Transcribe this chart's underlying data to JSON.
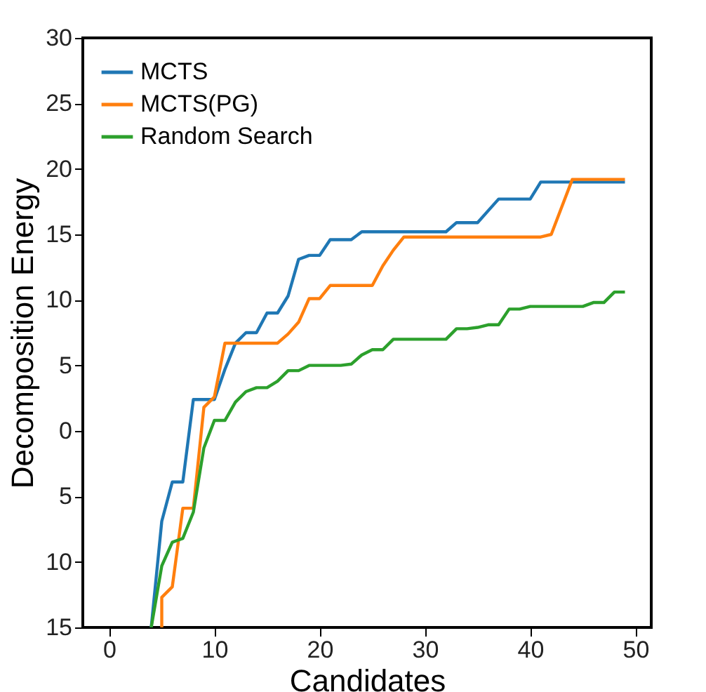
{
  "chart_data": {
    "type": "line",
    "xlabel": "Candidates",
    "ylabel": "Decomposition Energy",
    "xlim": [
      -2.5,
      51.5
    ],
    "ylim": [
      -15,
      30
    ],
    "xticks": [
      0,
      10,
      20,
      30,
      40,
      50
    ],
    "yticks": [
      {
        "value": -15,
        "label": "15"
      },
      {
        "value": -10,
        "label": "10"
      },
      {
        "value": -5,
        "label": "5"
      },
      0,
      5,
      10,
      15,
      20,
      25,
      30
    ],
    "grid": false,
    "legend": "top left",
    "marker": "none",
    "line_style": "solid",
    "series": [
      {
        "name": "MCTS",
        "color": "#1f77b4",
        "x": [
          4,
          5,
          6,
          7,
          8,
          9,
          10,
          11,
          12,
          13,
          14,
          15,
          16,
          17,
          18,
          19,
          20,
          21,
          22,
          23,
          24,
          25,
          26,
          27,
          28,
          29,
          30,
          31,
          32,
          33,
          34,
          35,
          36,
          37,
          38,
          39,
          40,
          41,
          42,
          43,
          44,
          45,
          46,
          47,
          48,
          49
        ],
        "values": [
          -15,
          -6.9,
          -3.9,
          -3.9,
          2.4,
          2.4,
          2.4,
          4.7,
          6.7,
          7.5,
          7.5,
          9.0,
          9.0,
          10.3,
          13.1,
          13.4,
          13.4,
          14.6,
          14.6,
          14.6,
          15.2,
          15.2,
          15.2,
          15.2,
          15.2,
          15.2,
          15.2,
          15.2,
          15.2,
          15.9,
          15.9,
          15.9,
          16.8,
          17.7,
          17.7,
          17.7,
          17.7,
          19.0,
          19.0,
          19.0,
          19.0,
          19.0,
          19.0,
          19.0,
          19.0,
          19.0
        ]
      },
      {
        "name": "MCTS(PG)",
        "color": "#ff7f0e",
        "x": [
          5,
          5,
          6,
          7,
          8,
          9,
          10,
          11,
          12,
          13,
          14,
          15,
          16,
          17,
          18,
          19,
          20,
          21,
          22,
          23,
          24,
          25,
          26,
          27,
          28,
          29,
          30,
          31,
          32,
          33,
          34,
          35,
          36,
          37,
          38,
          39,
          40,
          41,
          42,
          43,
          44,
          45,
          46,
          47,
          48,
          49
        ],
        "values": [
          -15,
          -12.7,
          -11.9,
          -5.9,
          -5.9,
          1.8,
          2.6,
          6.7,
          6.7,
          6.7,
          6.7,
          6.7,
          6.7,
          7.4,
          8.3,
          10.1,
          10.1,
          11.1,
          11.1,
          11.1,
          11.1,
          11.1,
          12.6,
          13.8,
          14.8,
          14.8,
          14.8,
          14.8,
          14.8,
          14.8,
          14.8,
          14.8,
          14.8,
          14.8,
          14.8,
          14.8,
          14.8,
          14.8,
          15.0,
          17.1,
          19.2,
          19.2,
          19.2,
          19.2,
          19.2,
          19.2
        ]
      },
      {
        "name": "Random Search",
        "color": "#2ca02c",
        "x": [
          4,
          5,
          6,
          7,
          8,
          9,
          10,
          11,
          12,
          13,
          14,
          15,
          16,
          17,
          18,
          19,
          20,
          21,
          22,
          23,
          24,
          25,
          26,
          27,
          28,
          29,
          30,
          31,
          32,
          33,
          34,
          35,
          36,
          37,
          38,
          39,
          40,
          41,
          42,
          43,
          44,
          45,
          46,
          47,
          48,
          49
        ],
        "values": [
          -15,
          -10.3,
          -8.5,
          -8.2,
          -6.2,
          -1.3,
          0.8,
          0.8,
          2.2,
          3.0,
          3.3,
          3.3,
          3.8,
          4.6,
          4.6,
          5.0,
          5.0,
          5.0,
          5.0,
          5.1,
          5.8,
          6.2,
          6.2,
          7.0,
          7.0,
          7.0,
          7.0,
          7.0,
          7.0,
          7.8,
          7.8,
          7.9,
          8.1,
          8.1,
          9.3,
          9.3,
          9.5,
          9.5,
          9.5,
          9.5,
          9.5,
          9.5,
          9.8,
          9.8,
          10.6,
          10.6
        ]
      }
    ]
  }
}
